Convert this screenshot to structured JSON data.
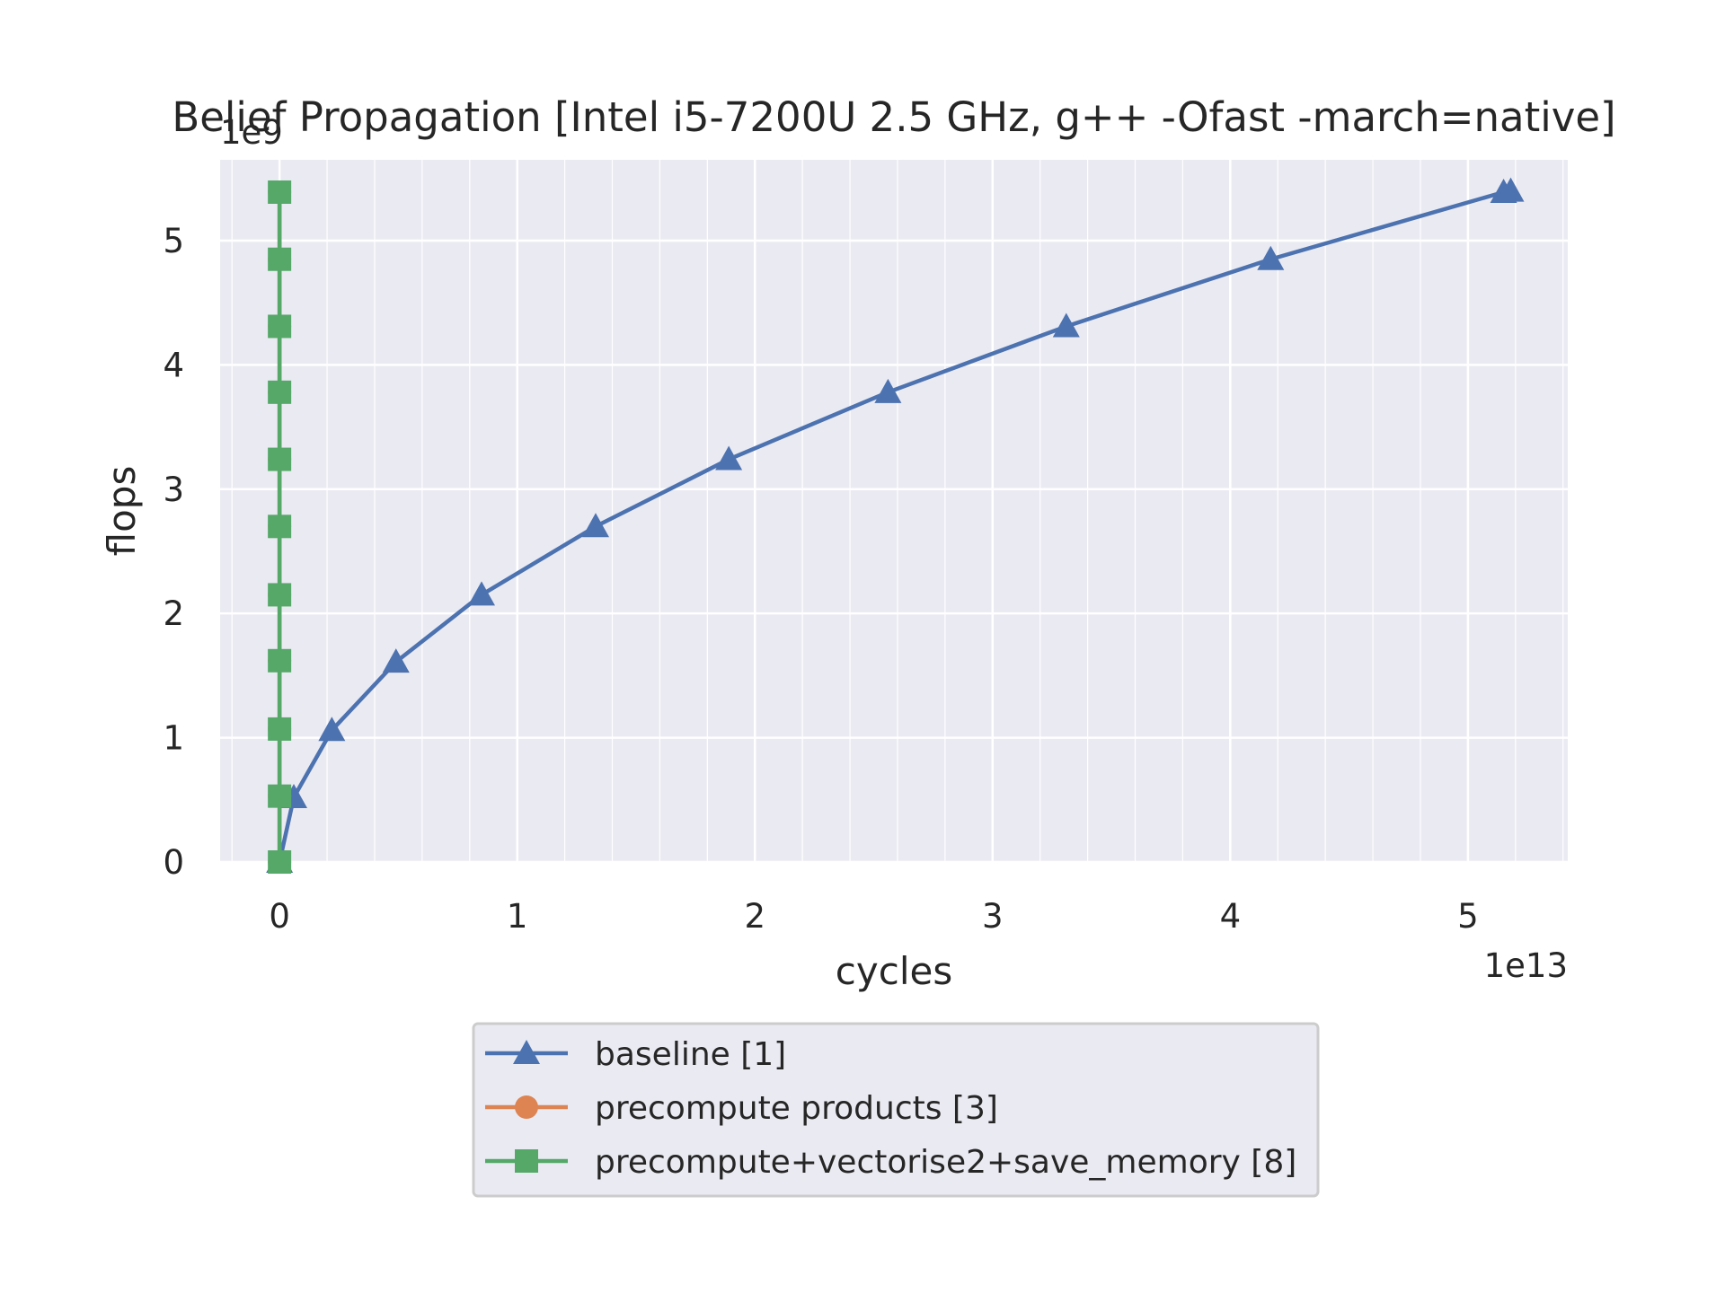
{
  "chart_data": {
    "type": "line",
    "title": "Belief Propagation [Intel i5-7200U 2.5 GHz, g++ -Ofast -march=native]",
    "xlabel": "cycles",
    "ylabel": "flops",
    "x_offset_text": "1e13",
    "y_offset_text": "1e9",
    "xlim": [
      -0.25,
      5.42
    ],
    "ylim": [
      0,
      5.65
    ],
    "x_ticks": [
      0,
      1,
      2,
      3,
      4,
      5
    ],
    "y_ticks": [
      0,
      1,
      2,
      3,
      4,
      5
    ],
    "grid": true,
    "legend_position": "bottom-center",
    "series": [
      {
        "name": "baseline [1]",
        "color": "#4c72b0",
        "marker": "triangle",
        "x": [
          0,
          0.06,
          0.22,
          0.49,
          0.85,
          1.33,
          1.89,
          2.56,
          3.31,
          4.17,
          5.15,
          5.18
        ],
        "y": [
          0,
          0.52,
          1.06,
          1.61,
          2.15,
          2.7,
          3.24,
          3.78,
          4.31,
          4.85,
          5.39,
          5.4
        ]
      },
      {
        "name": "precompute products [3]",
        "color": "#dd8452",
        "marker": "circle",
        "x": [
          0,
          0,
          0,
          0,
          0,
          0,
          0,
          0,
          0,
          0,
          0
        ],
        "y": [
          0,
          0.53,
          1.07,
          1.62,
          2.15,
          2.7,
          3.24,
          3.78,
          4.31,
          4.85,
          5.39
        ]
      },
      {
        "name": "precompute+vectorise2+save_memory [8]",
        "color": "#55a868",
        "marker": "square",
        "x": [
          0,
          0,
          0,
          0,
          0,
          0,
          0,
          0,
          0,
          0,
          0
        ],
        "y": [
          0,
          0.53,
          1.07,
          1.62,
          2.15,
          2.7,
          3.24,
          3.78,
          4.31,
          4.85,
          5.39
        ]
      }
    ]
  }
}
